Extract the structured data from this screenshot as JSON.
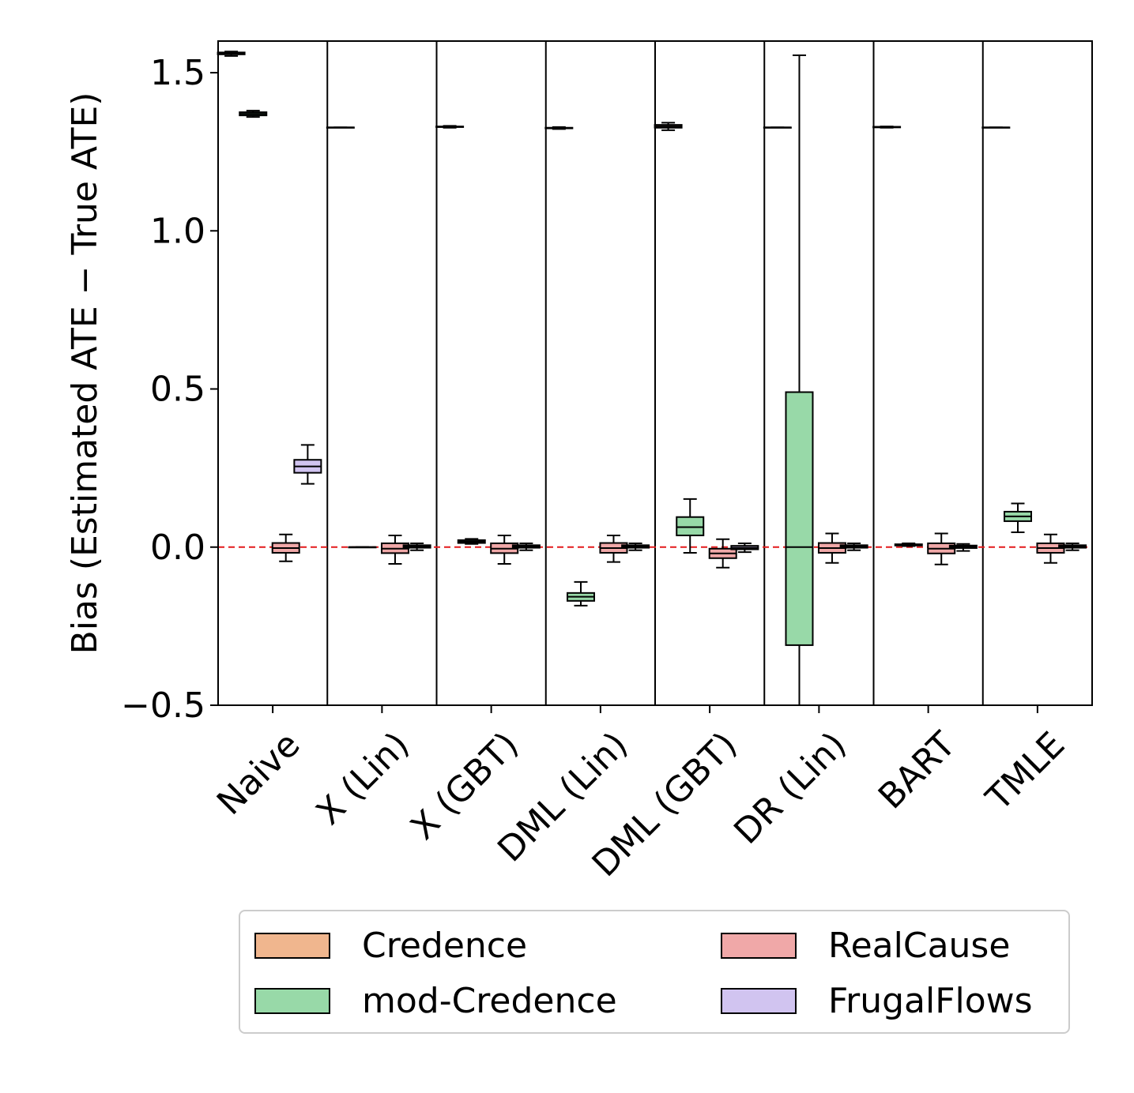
{
  "chart_data": {
    "type": "box",
    "title": "",
    "xlabel": "",
    "ylabel": "Bias (Estimated ATE − True ATE)",
    "ylim": [
      -0.5,
      1.6
    ],
    "yticks": [
      -0.5,
      0.0,
      0.5,
      1.0,
      1.5
    ],
    "ytick_labels": [
      "−0.5",
      "0.0",
      "0.5",
      "1.0",
      "1.5"
    ],
    "reference_line": {
      "y": 0.0,
      "color": "#e41a1c",
      "style": "dashed"
    },
    "categories": [
      "Naive",
      "X (Lin)",
      "X (GBT)",
      "DML (Lin)",
      "DML (GBT)",
      "DR (Lin)",
      "BART",
      "TMLE"
    ],
    "series": [
      {
        "name": "Credence",
        "color": "#f0b68e",
        "boxes": [
          {
            "min": 1.553,
            "q1": 1.558,
            "median": 1.561,
            "q3": 1.564,
            "max": 1.567
          },
          {
            "min": 1.327,
            "q1": 1.327,
            "median": 1.327,
            "q3": 1.327,
            "max": 1.327
          },
          {
            "min": 1.326,
            "q1": 1.328,
            "median": 1.329,
            "q3": 1.33,
            "max": 1.332
          },
          {
            "min": 1.322,
            "q1": 1.324,
            "median": 1.325,
            "q3": 1.326,
            "max": 1.328
          },
          {
            "min": 1.318,
            "q1": 1.326,
            "median": 1.33,
            "q3": 1.335,
            "max": 1.342
          },
          {
            "min": 1.327,
            "q1": 1.327,
            "median": 1.327,
            "q3": 1.327,
            "max": 1.327
          },
          {
            "min": 1.326,
            "q1": 1.327,
            "median": 1.328,
            "q3": 1.329,
            "max": 1.33
          },
          {
            "min": 1.327,
            "q1": 1.327,
            "median": 1.327,
            "q3": 1.327,
            "max": 1.327
          }
        ]
      },
      {
        "name": "mod-Credence",
        "color": "#98d9a8",
        "boxes": [
          {
            "min": 1.36,
            "q1": 1.365,
            "median": 1.37,
            "q3": 1.375,
            "max": 1.38
          },
          {
            "min": 0.0,
            "q1": 0.0,
            "median": 0.0,
            "q3": 0.0,
            "max": 0.0
          },
          {
            "min": 0.01,
            "q1": 0.013,
            "median": 0.017,
            "q3": 0.022,
            "max": 0.026
          },
          {
            "min": -0.185,
            "q1": -0.17,
            "median": -0.157,
            "q3": -0.145,
            "max": -0.11
          },
          {
            "min": -0.018,
            "q1": 0.037,
            "median": 0.063,
            "q3": 0.095,
            "max": 0.152
          },
          {
            "min": -0.5,
            "q1": -0.31,
            "median": 0.0,
            "q3": 0.49,
            "max": 1.555
          },
          {
            "min": 0.003,
            "q1": 0.005,
            "median": 0.007,
            "q3": 0.009,
            "max": 0.012
          },
          {
            "min": 0.047,
            "q1": 0.082,
            "median": 0.097,
            "q3": 0.112,
            "max": 0.138
          }
        ]
      },
      {
        "name": "RealCause",
        "color": "#f0a8a8",
        "boxes": [
          {
            "min": -0.045,
            "q1": -0.018,
            "median": -0.003,
            "q3": 0.013,
            "max": 0.04
          },
          {
            "min": -0.053,
            "q1": -0.019,
            "median": -0.005,
            "q3": 0.012,
            "max": 0.037
          },
          {
            "min": -0.053,
            "q1": -0.019,
            "median": -0.005,
            "q3": 0.012,
            "max": 0.037
          },
          {
            "min": -0.047,
            "q1": -0.018,
            "median": -0.003,
            "q3": 0.013,
            "max": 0.037
          },
          {
            "min": -0.065,
            "q1": -0.035,
            "median": -0.02,
            "q3": -0.005,
            "max": 0.025
          },
          {
            "min": -0.05,
            "q1": -0.018,
            "median": -0.003,
            "q3": 0.013,
            "max": 0.043
          },
          {
            "min": -0.055,
            "q1": -0.02,
            "median": -0.005,
            "q3": 0.012,
            "max": 0.043
          },
          {
            "min": -0.05,
            "q1": -0.018,
            "median": -0.003,
            "q3": 0.012,
            "max": 0.04
          }
        ]
      },
      {
        "name": "FrugalFlows",
        "color": "#d1c4f0",
        "boxes": [
          {
            "min": 0.2,
            "q1": 0.235,
            "median": 0.255,
            "q3": 0.276,
            "max": 0.323
          },
          {
            "min": -0.01,
            "q1": -0.002,
            "median": 0.002,
            "q3": 0.006,
            "max": 0.012
          },
          {
            "min": -0.01,
            "q1": -0.002,
            "median": 0.002,
            "q3": 0.006,
            "max": 0.012
          },
          {
            "min": -0.01,
            "q1": -0.002,
            "median": 0.002,
            "q3": 0.006,
            "max": 0.012
          },
          {
            "min": -0.016,
            "q1": -0.007,
            "median": -0.002,
            "q3": 0.004,
            "max": 0.012
          },
          {
            "min": -0.01,
            "q1": -0.002,
            "median": 0.002,
            "q3": 0.006,
            "max": 0.012
          },
          {
            "min": -0.012,
            "q1": -0.003,
            "median": 0.001,
            "q3": 0.005,
            "max": 0.01
          },
          {
            "min": -0.01,
            "q1": -0.002,
            "median": 0.002,
            "q3": 0.006,
            "max": 0.012
          }
        ]
      }
    ]
  },
  "legend": {
    "items": [
      {
        "label": "Credence",
        "color": "#f0b68e"
      },
      {
        "label": "RealCause",
        "color": "#f0a8a8"
      },
      {
        "label": "mod-Credence",
        "color": "#98d9a8"
      },
      {
        "label": "FrugalFlows",
        "color": "#d1c4f0"
      }
    ]
  }
}
